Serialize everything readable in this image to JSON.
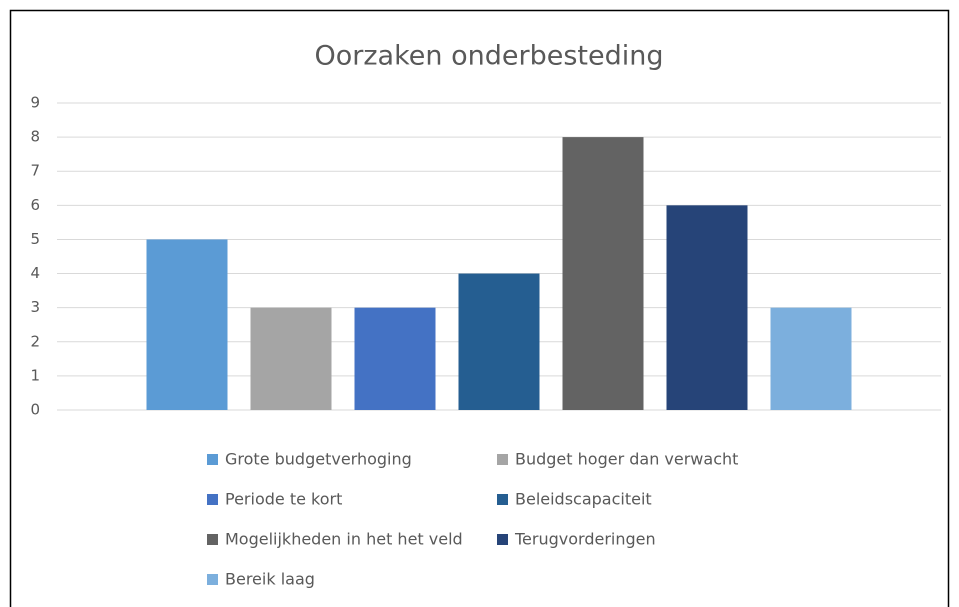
{
  "chart_data": {
    "type": "bar",
    "title": "Oorzaken onderbesteding",
    "series": [
      {
        "name": "Grote budgetverhoging",
        "color": "#5b9bd5",
        "values": [
          5
        ]
      },
      {
        "name": "Budget hoger dan verwacht",
        "color": "#a5a5a5",
        "values": [
          3
        ]
      },
      {
        "name": "Periode te kort",
        "color": "#4472c4",
        "values": [
          3
        ]
      },
      {
        "name": "Beleidscapaciteit",
        "color": "#255e91",
        "values": [
          4
        ]
      },
      {
        "name": "Mogelijkheden in het het veld",
        "color": "#636363",
        "values": [
          8
        ]
      },
      {
        "name": "Terugvorderingen",
        "color": "#264478",
        "values": [
          6
        ]
      },
      {
        "name": "Bereik laag",
        "color": "#7cafdd",
        "values": [
          3
        ]
      }
    ],
    "ylim": [
      0,
      9
    ],
    "yticks": [
      0,
      1,
      2,
      3,
      4,
      5,
      6,
      7,
      8,
      9
    ],
    "grid": true,
    "legend": "bottom"
  }
}
